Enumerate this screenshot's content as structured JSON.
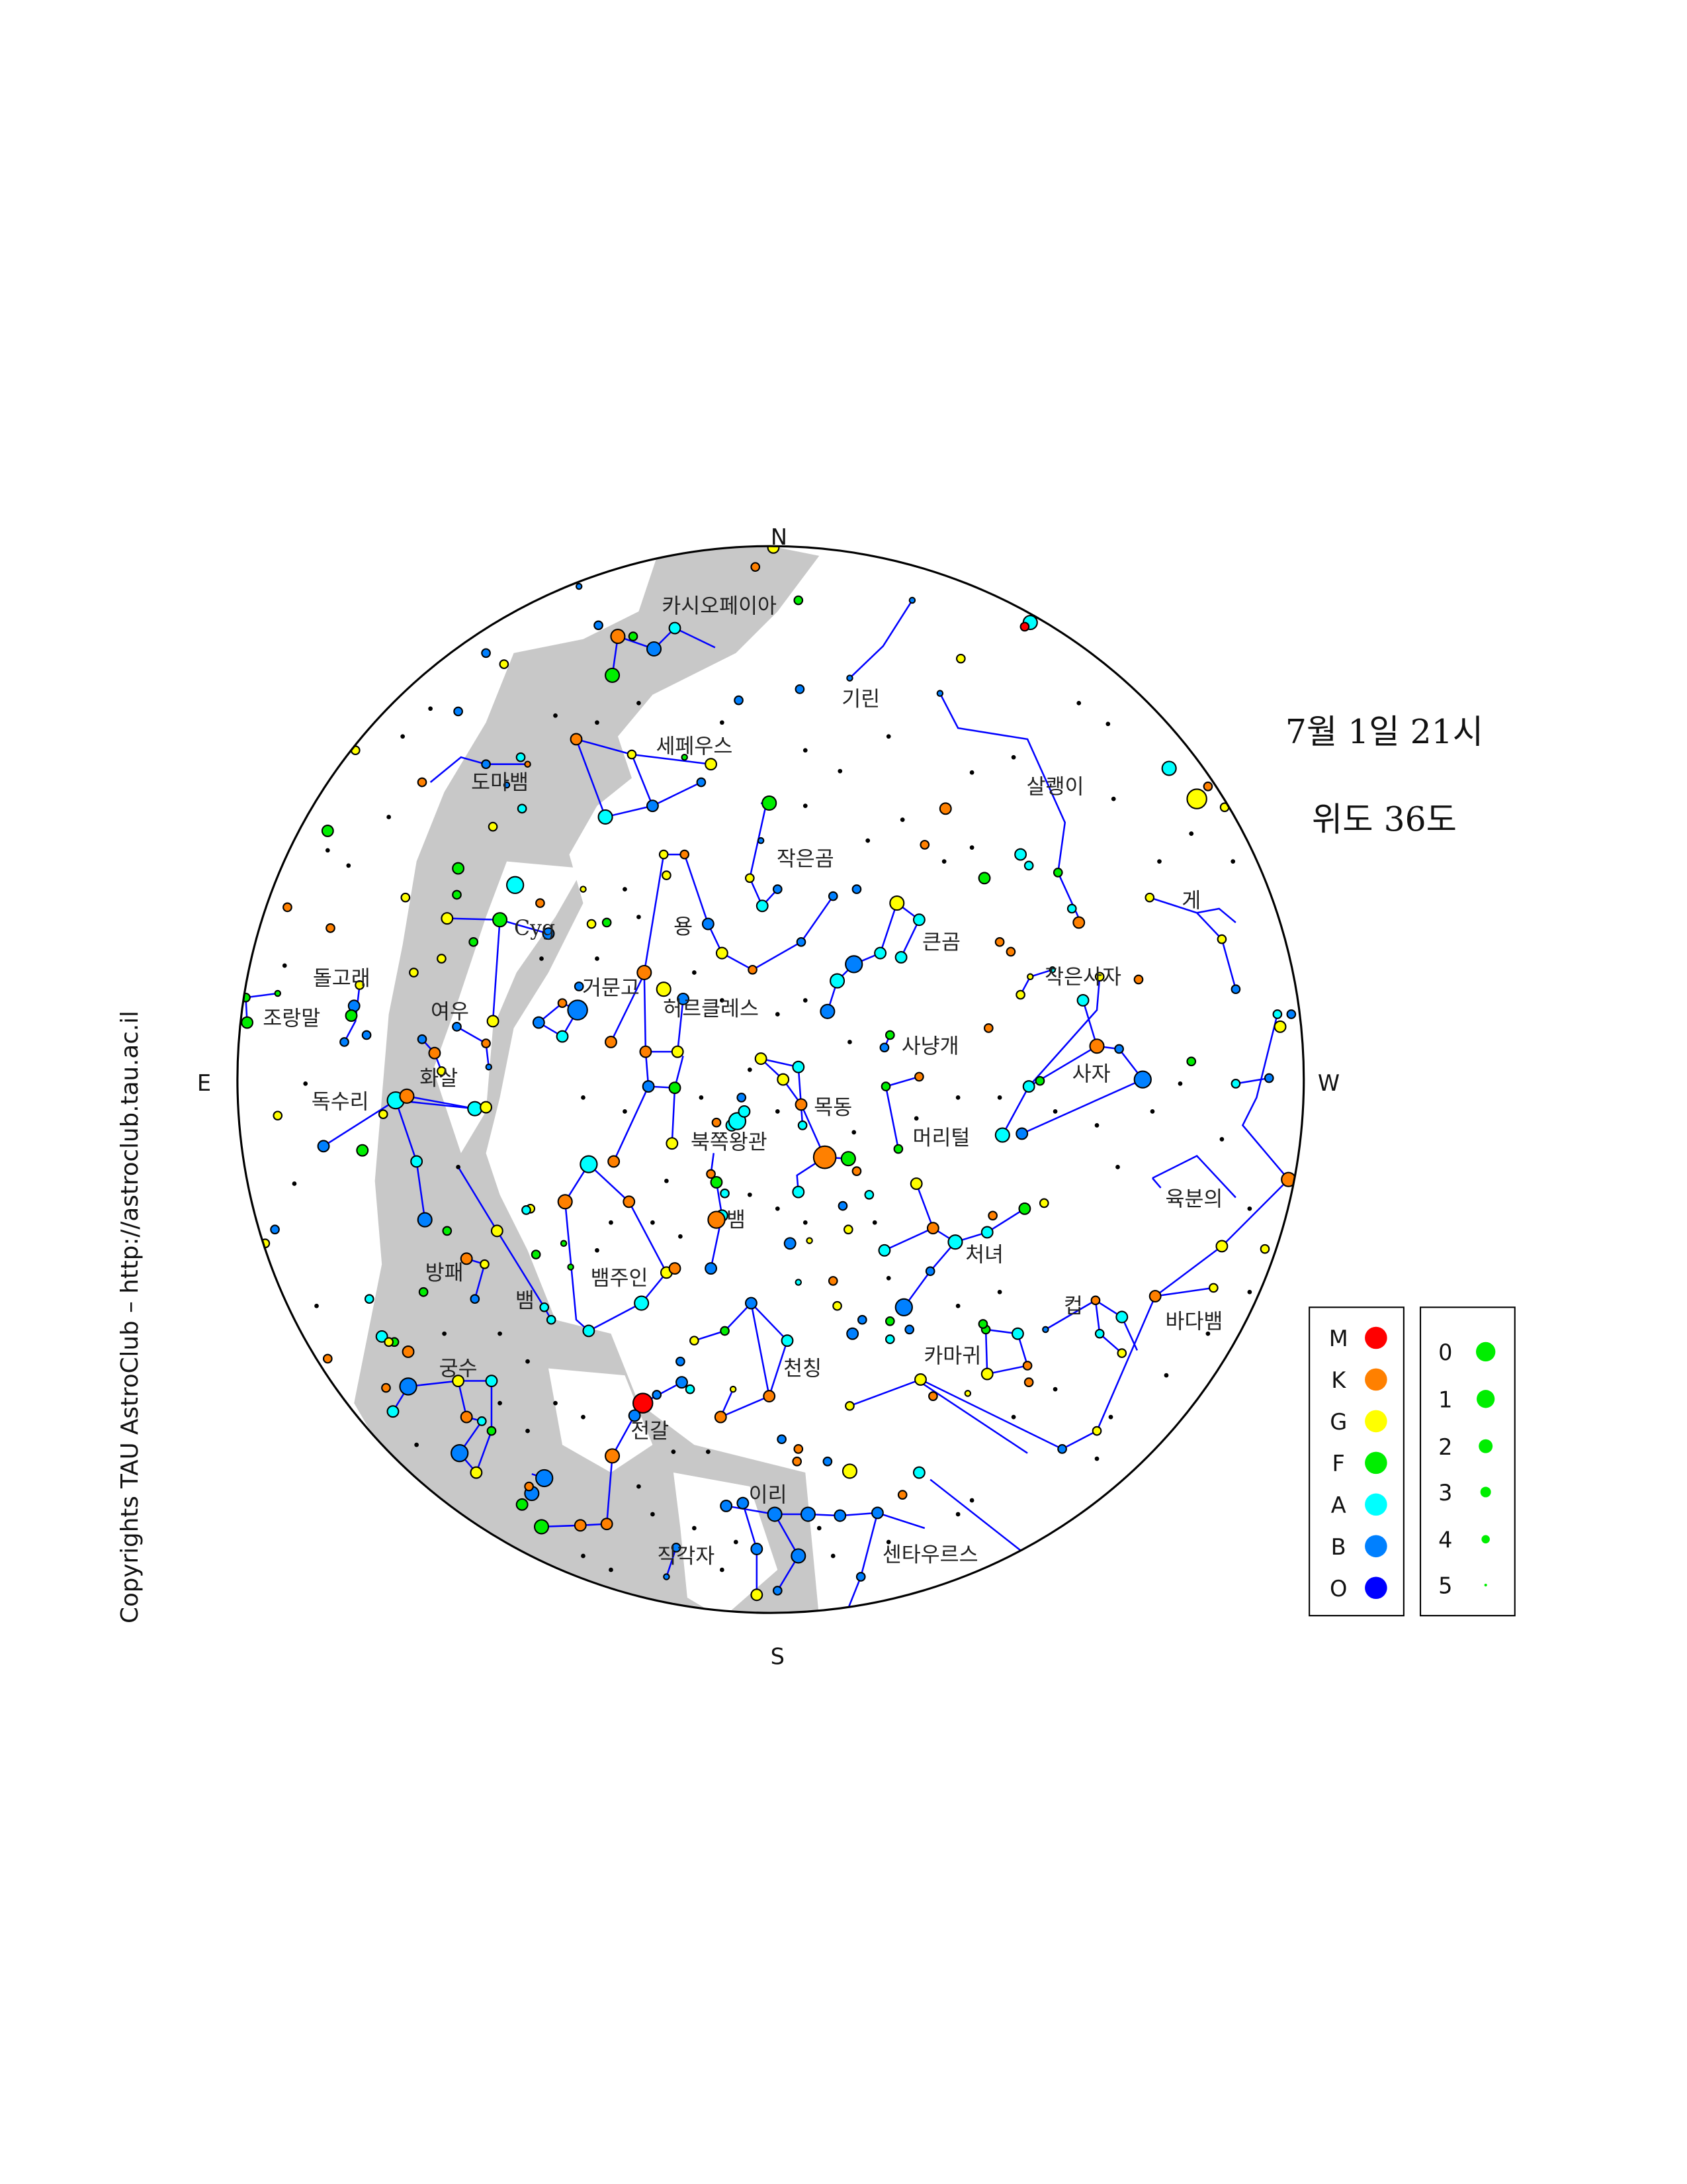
{
  "header": {
    "date_time": "7월 1일 21시",
    "latitude": "위도 36도"
  },
  "directions": {
    "north": "N",
    "south": "S",
    "east": "E",
    "west": "W"
  },
  "copyright": "Copyrights TAU AstroClub – http://astroclub.tau.ac.il",
  "constellations": [
    "카시오페이아",
    "기린",
    "세페우스",
    "도마뱀",
    "살쾡이",
    "작은곰",
    "게",
    "Cyg",
    "용",
    "큰곰",
    "돌고래",
    "거문고",
    "허르클레스",
    "작은사자",
    "조랑말",
    "여우",
    "사냥개",
    "사자",
    "화살",
    "독수리",
    "목동",
    "북쪽왕관",
    "머리털",
    "육분의",
    "뱀",
    "처녀",
    "방패",
    "뱀주인",
    "뱀",
    "컵",
    "바다뱀",
    "카마귀",
    "궁수",
    "천칭",
    "전갈",
    "이리",
    "직각자",
    "센타우르스"
  ],
  "legend_spectral": {
    "items": [
      {
        "label": "M",
        "color": "#ff0000"
      },
      {
        "label": "K",
        "color": "#ff8000"
      },
      {
        "label": "G",
        "color": "#ffff00"
      },
      {
        "label": "F",
        "color": "#00ee00"
      },
      {
        "label": "A",
        "color": "#00ffff"
      },
      {
        "label": "B",
        "color": "#0080ff"
      },
      {
        "label": "O",
        "color": "#0000ff"
      }
    ]
  },
  "legend_magnitude": {
    "items": [
      {
        "label": "0"
      },
      {
        "label": "1"
      },
      {
        "label": "2"
      },
      {
        "label": "3"
      },
      {
        "label": "4"
      },
      {
        "label": "5"
      }
    ],
    "color": "#00ee00"
  }
}
